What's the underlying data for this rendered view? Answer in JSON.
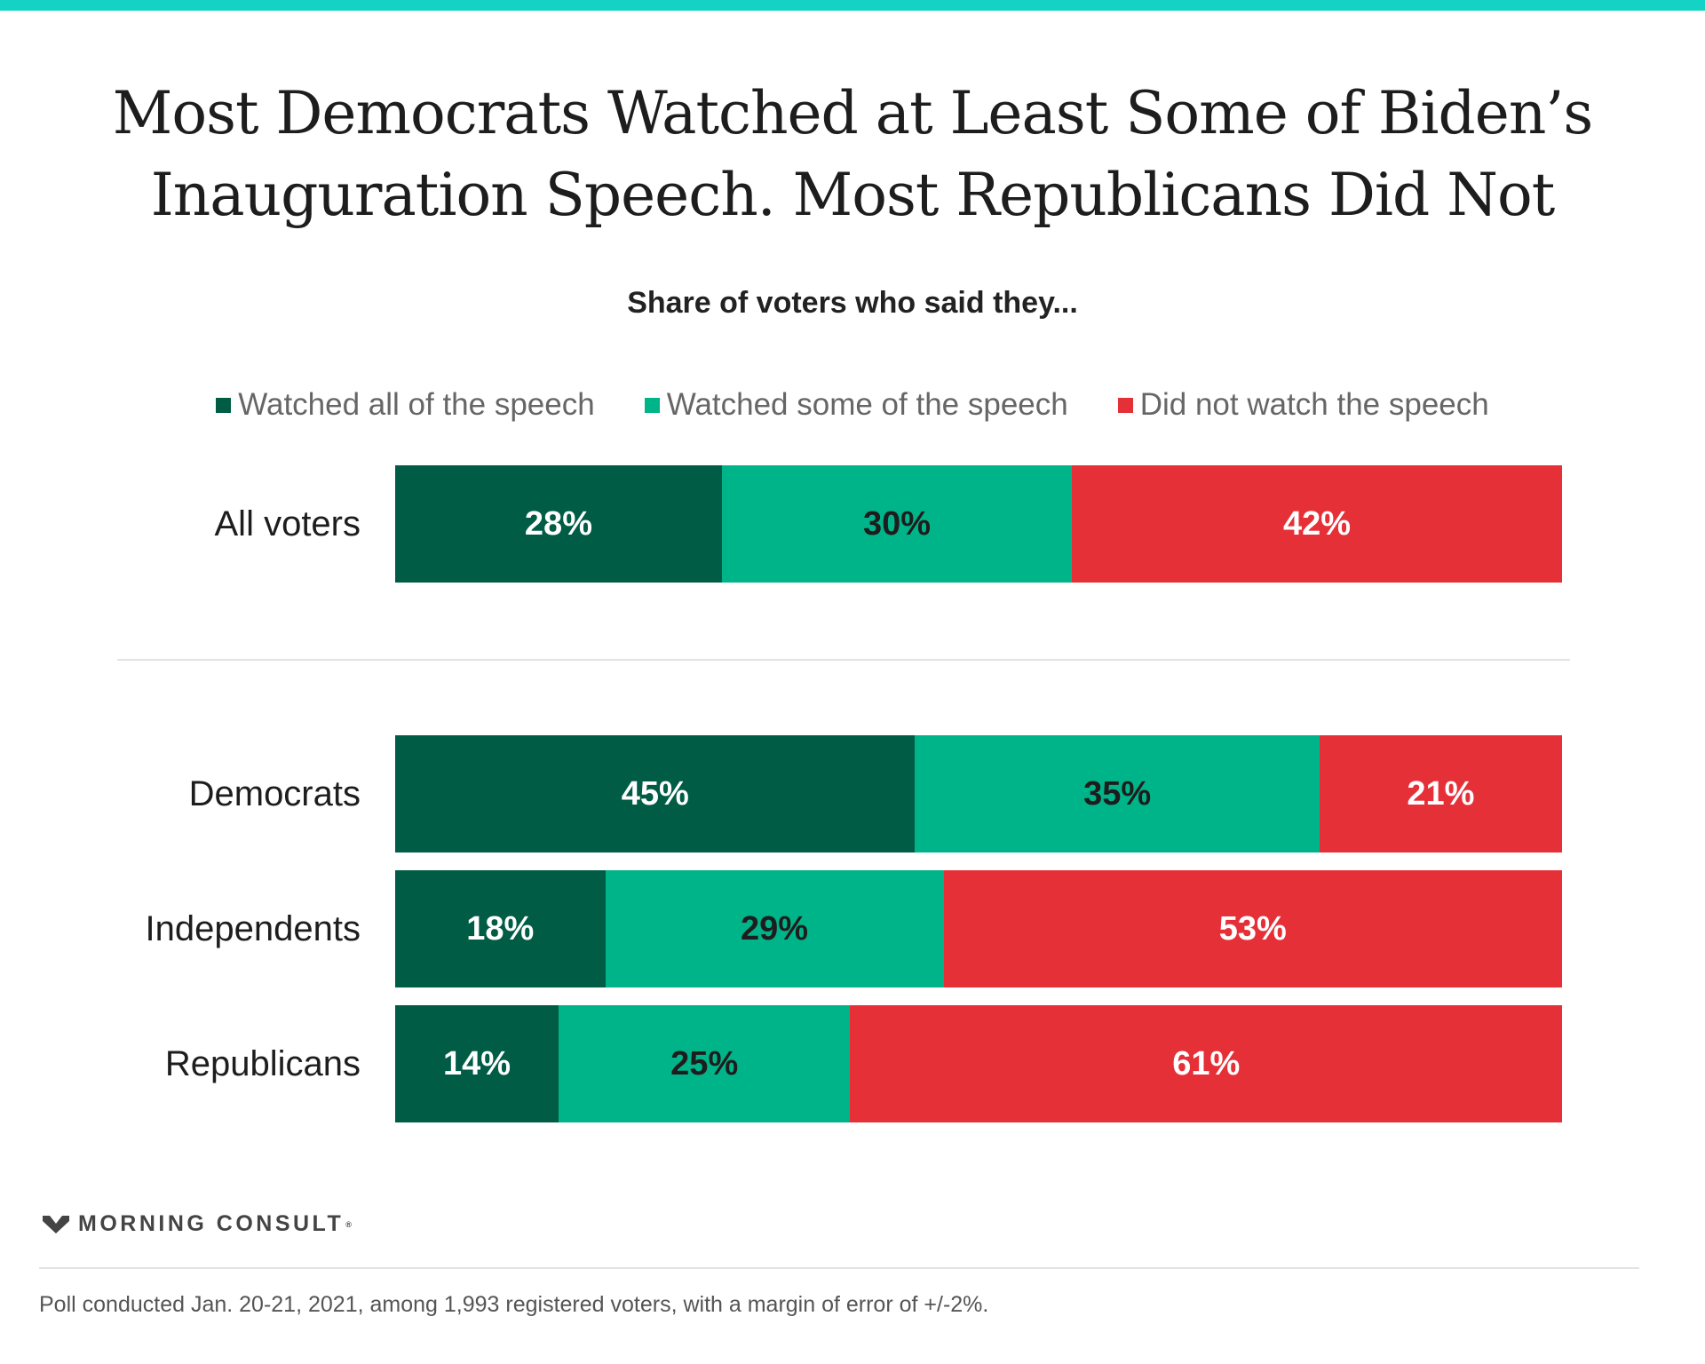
{
  "header": {
    "title_line1": "Most Democrats Watched at Least Some of Biden’s",
    "title_line2": "Inauguration Speech. Most Republicans Did Not",
    "subtitle": "Share of voters who said they..."
  },
  "colors": {
    "top_bar": "#14d3c6",
    "watched_all": "#005c45",
    "watched_some": "#00b48a",
    "did_not_watch": "#e63038",
    "label_dark": "#1d1d1d",
    "label_light": "#ffffff"
  },
  "legend": [
    {
      "label": "Watched all of the speech",
      "color": "#005c45"
    },
    {
      "label": "Watched some of the speech",
      "color": "#00b48a"
    },
    {
      "label": "Did not watch the speech",
      "color": "#e63038"
    }
  ],
  "chart_data": {
    "type": "bar",
    "orientation": "horizontal",
    "stacked": true,
    "title": "Most Democrats Watched at Least Some of Biden’s Inauguration Speech. Most Republicans Did Not",
    "subtitle": "Share of voters who said they...",
    "categories": [
      "All voters",
      "Democrats",
      "Independents",
      "Republicans"
    ],
    "series": [
      {
        "name": "Watched all of the speech",
        "values": [
          28,
          45,
          18,
          14
        ]
      },
      {
        "name": "Watched some of the speech",
        "values": [
          30,
          35,
          29,
          25
        ]
      },
      {
        "name": "Did not watch the speech",
        "values": [
          42,
          21,
          53,
          61
        ]
      }
    ],
    "value_labels": [
      [
        "28%",
        "30%",
        "42%"
      ],
      [
        "45%",
        "35%",
        "21%"
      ],
      [
        "18%",
        "29%",
        "53%"
      ],
      [
        "14%",
        "25%",
        "61%"
      ]
    ],
    "legend_position": "top",
    "grid": false
  },
  "footer": {
    "brand": "MORNING CONSULT",
    "brand_mark": "®",
    "note": "Poll conducted Jan. 20-21, 2021, among 1,993 registered voters, with a margin of error of +/-2%."
  }
}
